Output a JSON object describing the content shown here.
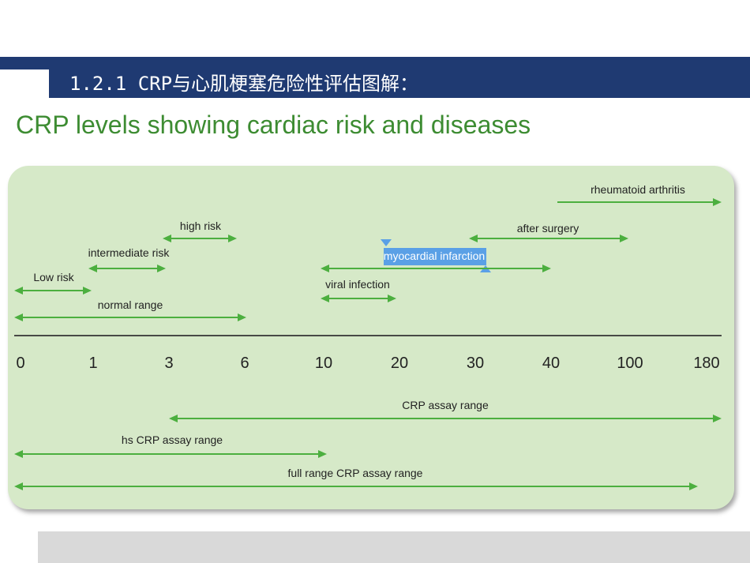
{
  "slide": {
    "header_title": "1.2.1 CRP与心肌梗塞危险性评估图解：",
    "heading": "CRP levels showing cardiac risk and diseases"
  },
  "colors": {
    "header_bar": "#1f3a72",
    "heading_text": "#3d8c32",
    "panel_bg": "#d6e9c8",
    "arrow": "#4caf3f",
    "highlight": "#5aa0e6",
    "footer_bar": "#d9d9d9"
  },
  "axis": {
    "ticks": [
      "0",
      "1",
      "3",
      "6",
      "10",
      "20",
      "30",
      "40",
      "100",
      "180"
    ]
  },
  "ranges": [
    {
      "id": "rheumatoid-arthritis",
      "label": "rheumatoid arthritis",
      "from": "40",
      "to": "180",
      "arrow_start": false,
      "arrow_end": true
    },
    {
      "id": "high-risk",
      "label": "high risk",
      "from": "3",
      "to": "6",
      "arrow_start": true,
      "arrow_end": true
    },
    {
      "id": "after-surgery",
      "label": "after surgery",
      "from": "30",
      "to": "100",
      "arrow_start": true,
      "arrow_end": true
    },
    {
      "id": "intermediate-risk",
      "label": "intermediate risk",
      "from": "1",
      "to": "3",
      "arrow_start": true,
      "arrow_end": true
    },
    {
      "id": "myocardial-infarction",
      "label": "myocardial infarction",
      "from": "10",
      "to": "40",
      "arrow_start": true,
      "arrow_end": true,
      "highlighted": true
    },
    {
      "id": "low-risk",
      "label": "Low risk",
      "from": "0",
      "to": "1",
      "arrow_start": true,
      "arrow_end": true
    },
    {
      "id": "viral-infection",
      "label": "viral infection",
      "from": "10",
      "to": "20",
      "arrow_start": true,
      "arrow_end": true
    },
    {
      "id": "normal-range",
      "label": "normal range",
      "from": "0",
      "to": "6",
      "arrow_start": true,
      "arrow_end": true
    }
  ],
  "assay_ranges": [
    {
      "id": "crp-assay-range",
      "label": "CRP assay range",
      "from": "3",
      "to": "180",
      "arrow_start": true,
      "arrow_end": true
    },
    {
      "id": "hs-crp-assay-range",
      "label": "hs CRP assay range",
      "from": "0",
      "to": "10",
      "arrow_start": true,
      "arrow_end": true
    },
    {
      "id": "full-range-crp-assay-range",
      "label": "full range CRP assay range",
      "from": "0",
      "to": "180",
      "arrow_start": true,
      "arrow_end": true
    }
  ]
}
